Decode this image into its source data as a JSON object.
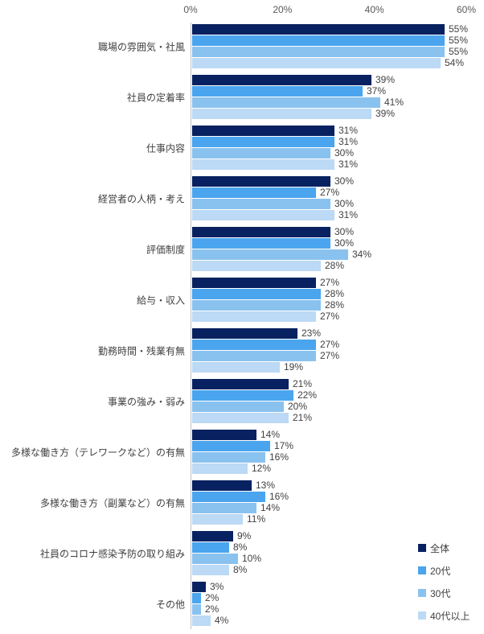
{
  "chart_data": {
    "type": "bar",
    "orientation": "horizontal",
    "title": "",
    "xlabel": "",
    "ylabel": "",
    "axis": {
      "position": "top",
      "min": 0,
      "max": 60,
      "ticks": [
        "0%",
        "20%",
        "40%",
        "60%"
      ],
      "tick_values": [
        0,
        20,
        40,
        60
      ]
    },
    "grid": false,
    "value_label_suffix": "%",
    "categories": [
      "職場の雰囲気・社風",
      "社員の定着率",
      "仕事内容",
      "経営者の人柄・考え",
      "評価制度",
      "給与・収入",
      "勤務時間・残業有無",
      "事業の強み・弱み",
      "多様な働き方（テレワークなど）の有無",
      "多様な働き方（副業など）の有無",
      "社員のコロナ感染予防の取り組み",
      "その他"
    ],
    "series": [
      {
        "name": "全体",
        "color": "#082160",
        "values": [
          55,
          39,
          31,
          30,
          30,
          27,
          23,
          21,
          14,
          13,
          9,
          3
        ]
      },
      {
        "name": "20代",
        "color": "#4aa5ee",
        "values": [
          55,
          37,
          31,
          27,
          30,
          28,
          27,
          22,
          17,
          16,
          8,
          2
        ]
      },
      {
        "name": "30代",
        "color": "#8ac2ef",
        "values": [
          55,
          41,
          30,
          30,
          34,
          28,
          27,
          20,
          16,
          14,
          10,
          2
        ]
      },
      {
        "name": "40代以上",
        "color": "#bcd9f5",
        "values": [
          54,
          39,
          31,
          31,
          28,
          27,
          19,
          21,
          12,
          11,
          8,
          4
        ]
      }
    ],
    "legend": {
      "position": "bottom-right",
      "entries": [
        "全体",
        "20代",
        "30代",
        "40代以上"
      ]
    }
  },
  "colors": {
    "axis_line": "#bfbfbf",
    "tick_text": "#595959",
    "label_text": "#3f3f3f",
    "background": "#ffffff"
  }
}
